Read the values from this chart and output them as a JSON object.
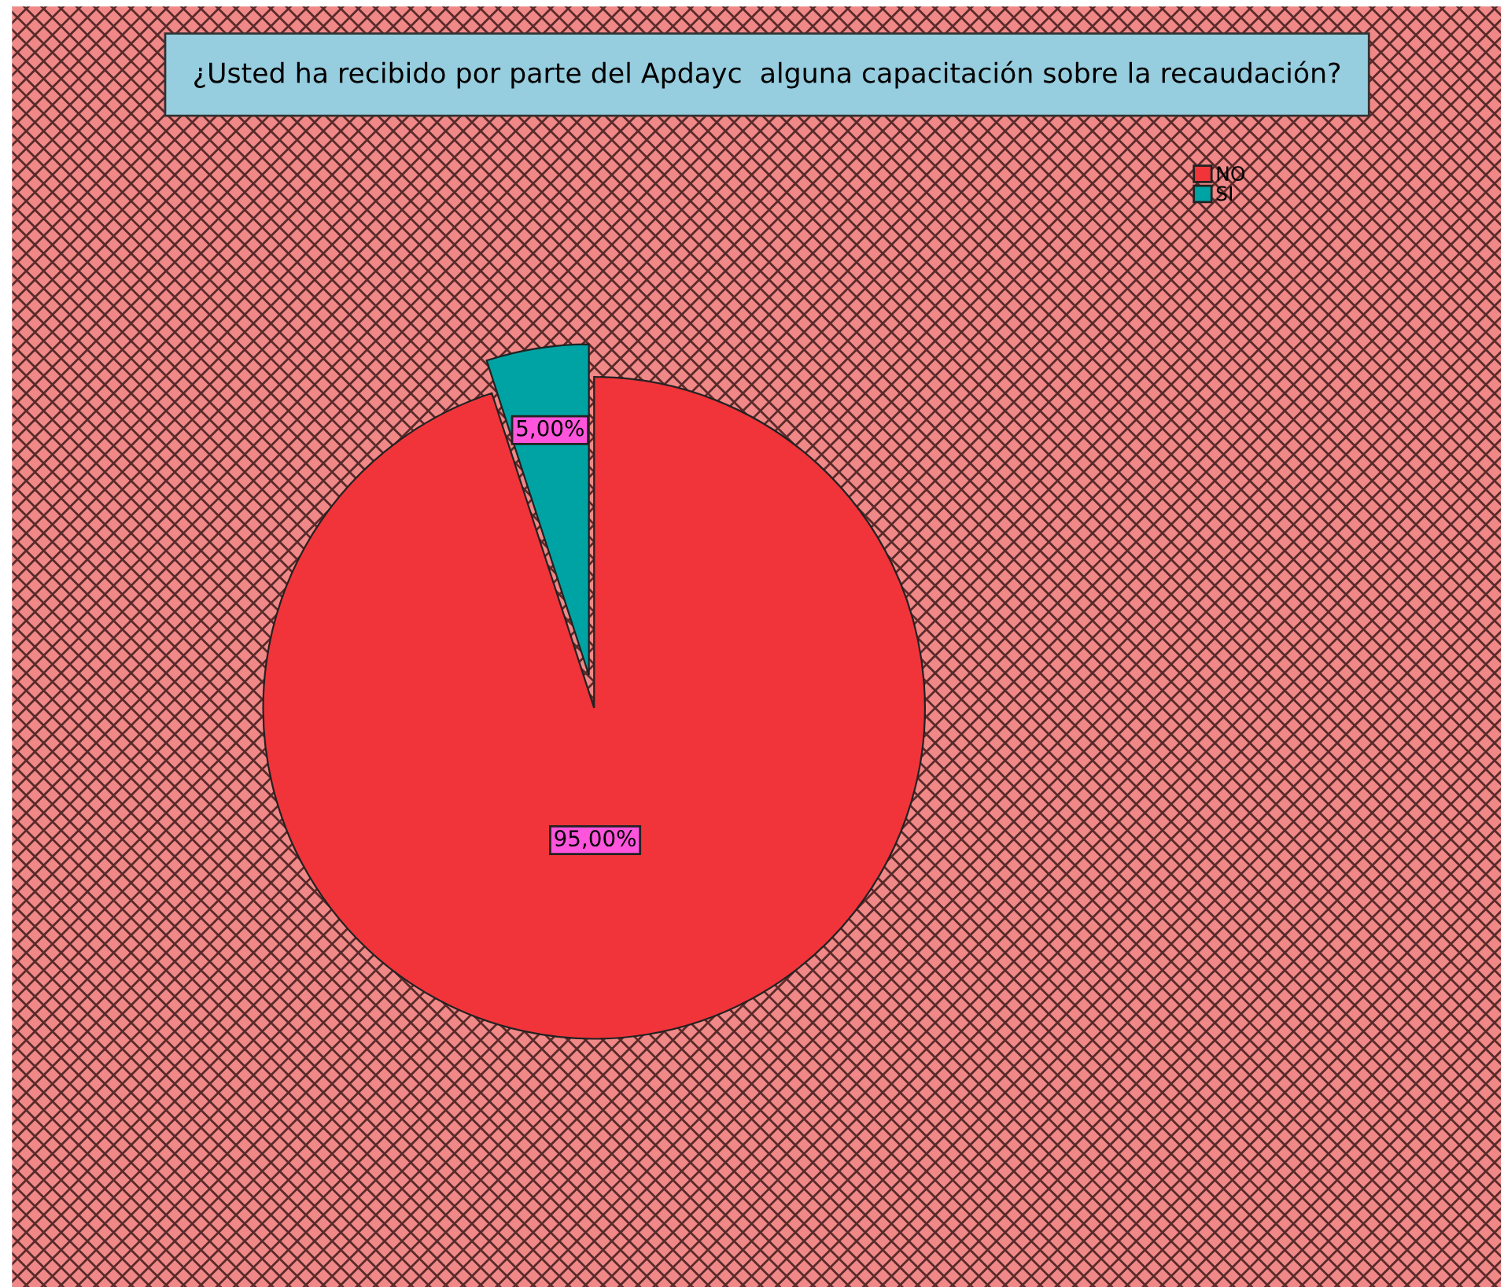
{
  "chart_data": {
    "type": "pie",
    "title": "¿Usted ha recibido por parte del Apdayc  alguna capacitación sobre la recaudación?",
    "categories": [
      "NO",
      "SI"
    ],
    "values": [
      95,
      5
    ],
    "colors": [
      "#f0343a",
      "#00a3a3"
    ],
    "value_labels": [
      "95,00%",
      "5,00%"
    ],
    "legend": "top right"
  }
}
